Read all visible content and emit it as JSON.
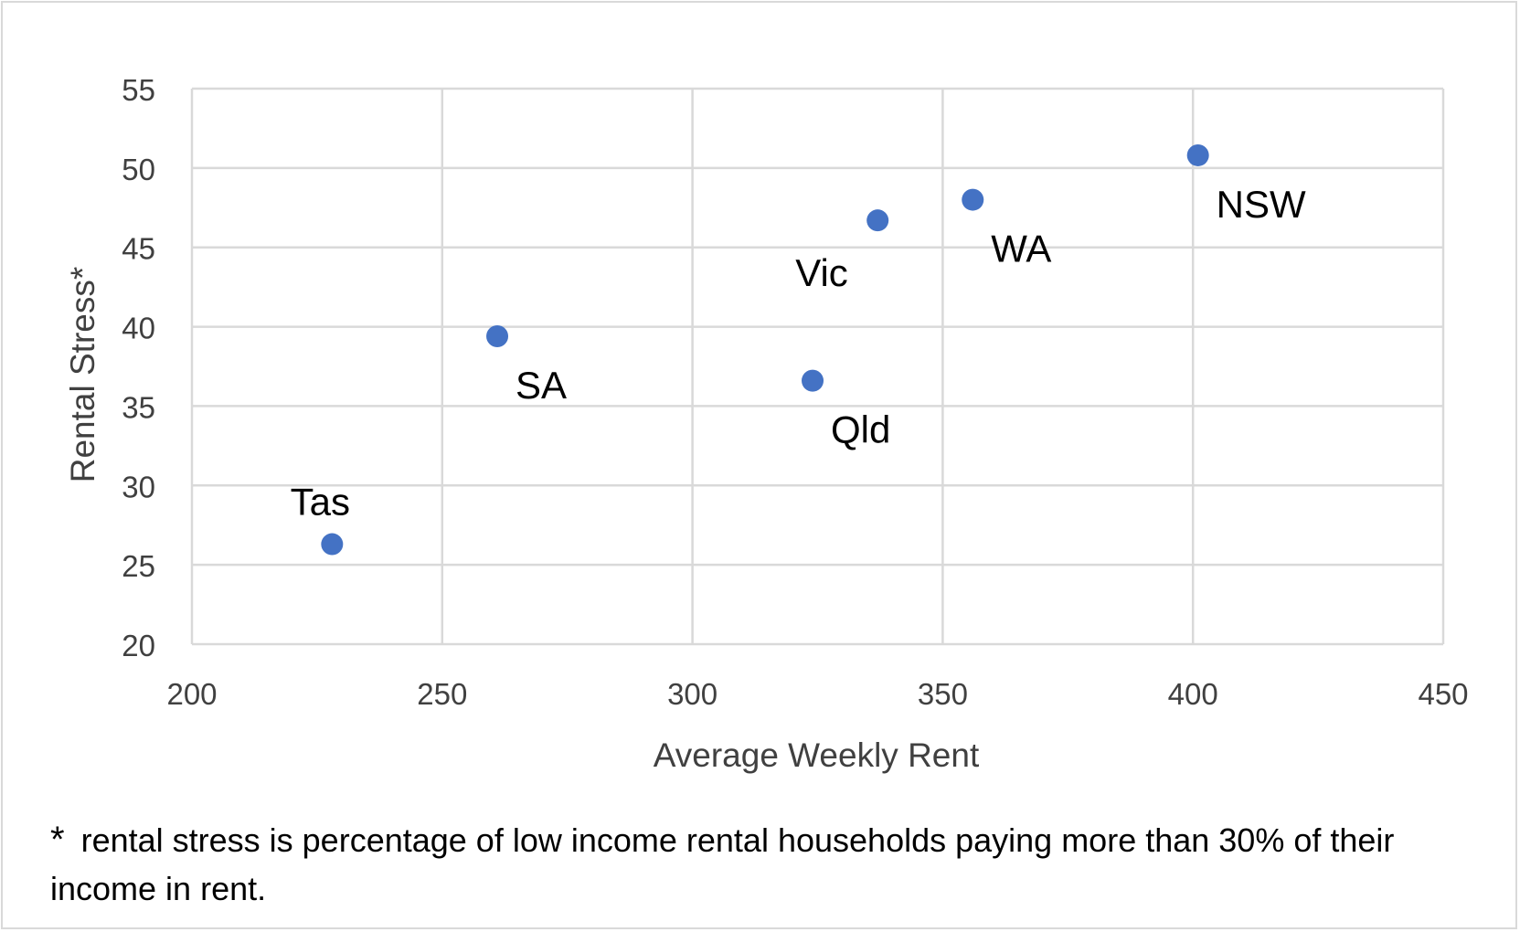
{
  "chart_data": {
    "type": "scatter",
    "title": "",
    "xlabel": "Average Weekly Rent",
    "ylabel": "Rental Stress*",
    "xlim": [
      200,
      450
    ],
    "ylim": [
      20,
      55
    ],
    "x_ticks": [
      200,
      250,
      300,
      350,
      400,
      450
    ],
    "y_ticks": [
      20,
      25,
      30,
      35,
      40,
      45,
      50,
      55
    ],
    "grid": true,
    "legend": "none",
    "marker_color": "#4472c4",
    "points": [
      {
        "label": "Tas",
        "x": 228,
        "y": 26.3,
        "label_position": "above"
      },
      {
        "label": "SA",
        "x": 261,
        "y": 39.4,
        "label_position": "below-right"
      },
      {
        "label": "Qld",
        "x": 324,
        "y": 36.6,
        "label_position": "below-right"
      },
      {
        "label": "Vic",
        "x": 337,
        "y": 46.7,
        "label_position": "below-left"
      },
      {
        "label": "WA",
        "x": 356,
        "y": 48.0,
        "label_position": "below-right"
      },
      {
        "label": "NSW",
        "x": 401,
        "y": 50.8,
        "label_position": "below-right"
      }
    ]
  },
  "footnote": {
    "marker": "*",
    "text": "rental stress is percentage of low income rental households paying more than 30% of their income in rent."
  }
}
